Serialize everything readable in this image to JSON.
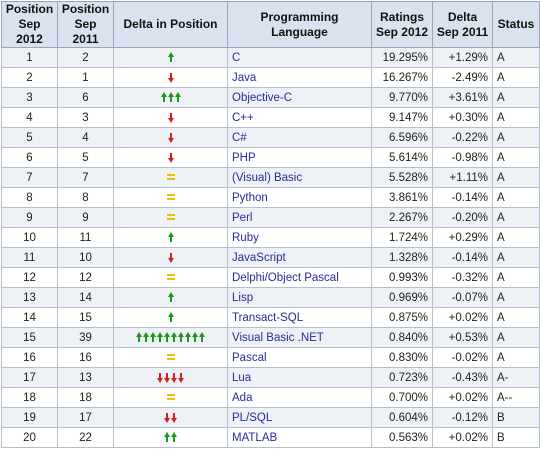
{
  "headers": {
    "pos_2012": "Position\nSep 2012",
    "pos_2011": "Position\nSep 2011",
    "delta_pos": "Delta in Position",
    "language": "Programming Language",
    "ratings": "Ratings\nSep 2012",
    "delta_rating": "Delta\nSep 2011",
    "status": "Status"
  },
  "colors": {
    "up_arrow": "#1a9a1a",
    "down_arrow": "#d42020",
    "equal_sign": "#f0c000",
    "link_text": "#2a2a9e"
  },
  "rows": [
    {
      "pos2012": "1",
      "pos2011": "2",
      "delta": {
        "dir": "up",
        "count": 1
      },
      "lang": "C",
      "rating": "19.295%",
      "change": "+1.29%",
      "status": "A"
    },
    {
      "pos2012": "2",
      "pos2011": "1",
      "delta": {
        "dir": "down",
        "count": 1
      },
      "lang": "Java",
      "rating": "16.267%",
      "change": "-2.49%",
      "status": "A"
    },
    {
      "pos2012": "3",
      "pos2011": "6",
      "delta": {
        "dir": "up",
        "count": 3
      },
      "lang": "Objective-C",
      "rating": "9.770%",
      "change": "+3.61%",
      "status": "A"
    },
    {
      "pos2012": "4",
      "pos2011": "3",
      "delta": {
        "dir": "down",
        "count": 1
      },
      "lang": "C++",
      "rating": "9.147%",
      "change": "+0.30%",
      "status": "A"
    },
    {
      "pos2012": "5",
      "pos2011": "4",
      "delta": {
        "dir": "down",
        "count": 1
      },
      "lang": "C#",
      "rating": "6.596%",
      "change": "-0.22%",
      "status": "A"
    },
    {
      "pos2012": "6",
      "pos2011": "5",
      "delta": {
        "dir": "down",
        "count": 1
      },
      "lang": "PHP",
      "rating": "5.614%",
      "change": "-0.98%",
      "status": "A"
    },
    {
      "pos2012": "7",
      "pos2011": "7",
      "delta": {
        "dir": "same",
        "count": 1
      },
      "lang": "(Visual) Basic",
      "rating": "5.528%",
      "change": "+1.11%",
      "status": "A"
    },
    {
      "pos2012": "8",
      "pos2011": "8",
      "delta": {
        "dir": "same",
        "count": 1
      },
      "lang": "Python",
      "rating": "3.861%",
      "change": "-0.14%",
      "status": "A"
    },
    {
      "pos2012": "9",
      "pos2011": "9",
      "delta": {
        "dir": "same",
        "count": 1
      },
      "lang": "Perl",
      "rating": "2.267%",
      "change": "-0.20%",
      "status": "A"
    },
    {
      "pos2012": "10",
      "pos2011": "11",
      "delta": {
        "dir": "up",
        "count": 1
      },
      "lang": "Ruby",
      "rating": "1.724%",
      "change": "+0.29%",
      "status": "A"
    },
    {
      "pos2012": "11",
      "pos2011": "10",
      "delta": {
        "dir": "down",
        "count": 1
      },
      "lang": "JavaScript",
      "rating": "1.328%",
      "change": "-0.14%",
      "status": "A"
    },
    {
      "pos2012": "12",
      "pos2011": "12",
      "delta": {
        "dir": "same",
        "count": 1
      },
      "lang": "Delphi/Object Pascal",
      "rating": "0.993%",
      "change": "-0.32%",
      "status": "A"
    },
    {
      "pos2012": "13",
      "pos2011": "14",
      "delta": {
        "dir": "up",
        "count": 1
      },
      "lang": "Lisp",
      "rating": "0.969%",
      "change": "-0.07%",
      "status": "A"
    },
    {
      "pos2012": "14",
      "pos2011": "15",
      "delta": {
        "dir": "up",
        "count": 1
      },
      "lang": "Transact-SQL",
      "rating": "0.875%",
      "change": "+0.02%",
      "status": "A"
    },
    {
      "pos2012": "15",
      "pos2011": "39",
      "delta": {
        "dir": "up",
        "count": 10
      },
      "lang": "Visual Basic .NET",
      "rating": "0.840%",
      "change": "+0.53%",
      "status": "A"
    },
    {
      "pos2012": "16",
      "pos2011": "16",
      "delta": {
        "dir": "same",
        "count": 1
      },
      "lang": "Pascal",
      "rating": "0.830%",
      "change": "-0.02%",
      "status": "A"
    },
    {
      "pos2012": "17",
      "pos2011": "13",
      "delta": {
        "dir": "down",
        "count": 4
      },
      "lang": "Lua",
      "rating": "0.723%",
      "change": "-0.43%",
      "status": "A-"
    },
    {
      "pos2012": "18",
      "pos2011": "18",
      "delta": {
        "dir": "same",
        "count": 1
      },
      "lang": "Ada",
      "rating": "0.700%",
      "change": "+0.02%",
      "status": "A--"
    },
    {
      "pos2012": "19",
      "pos2011": "17",
      "delta": {
        "dir": "down",
        "count": 2
      },
      "lang": "PL/SQL",
      "rating": "0.604%",
      "change": "-0.12%",
      "status": "B"
    },
    {
      "pos2012": "20",
      "pos2011": "22",
      "delta": {
        "dir": "up",
        "count": 2
      },
      "lang": "MATLAB",
      "rating": "0.563%",
      "change": "+0.02%",
      "status": "B"
    }
  ]
}
